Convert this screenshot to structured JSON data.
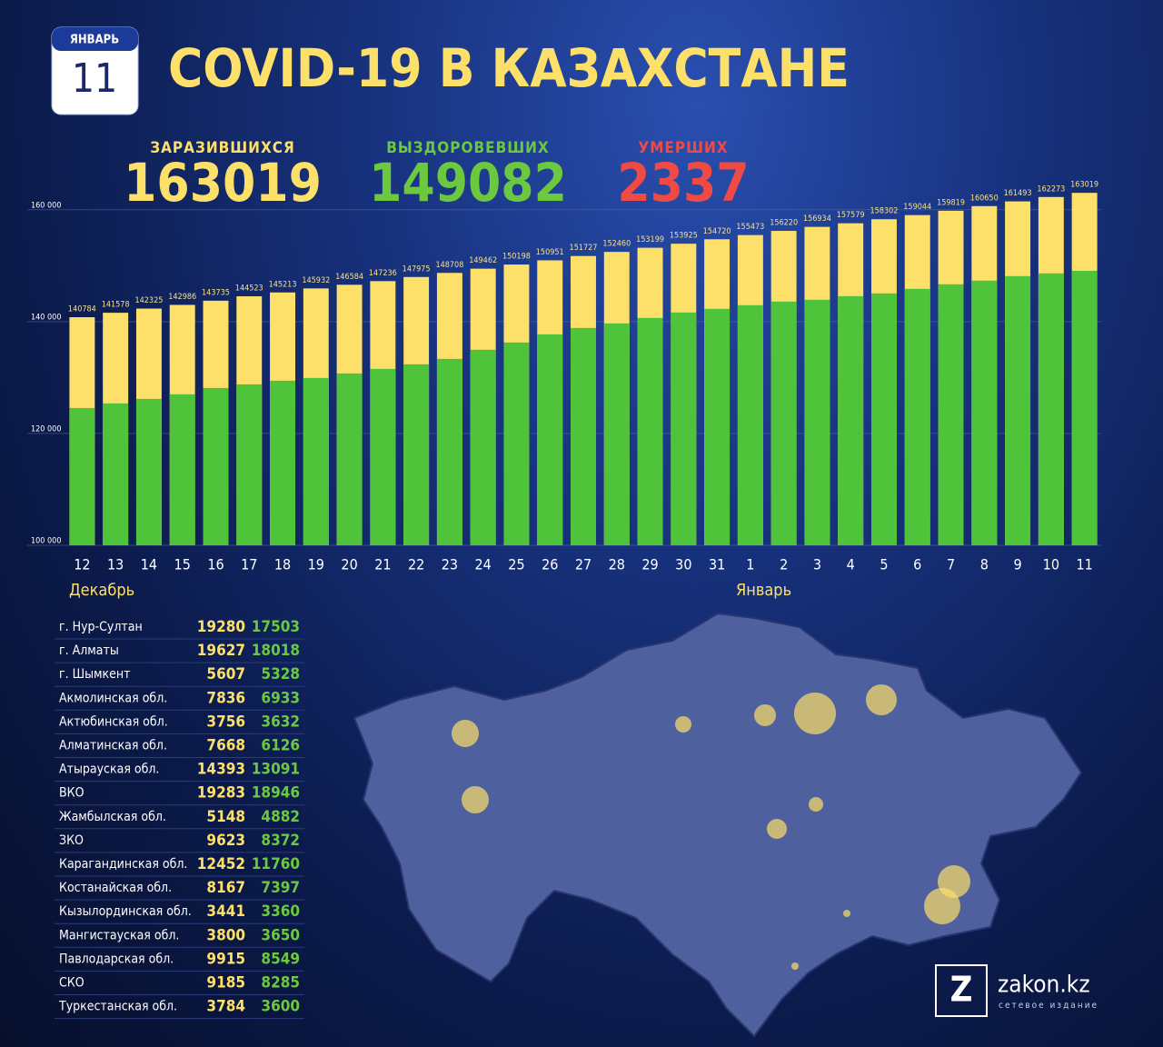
{
  "header": {
    "month": "ЯНВАРЬ",
    "day": "11",
    "title": "COVID-19 В КАЗАХСТАНЕ"
  },
  "stats": [
    {
      "label": "ЗАРАЗИВШИХСЯ",
      "value": 163019,
      "color": "#fde06a"
    },
    {
      "label": "ВЫЗДОРОВЕВШИХ",
      "value": 149082,
      "color": "#6cc93f"
    },
    {
      "label": "УМЕРШИХ",
      "value": 2337,
      "color": "#f04a45"
    }
  ],
  "chart_data": {
    "type": "bar",
    "categories": [
      "12",
      "13",
      "14",
      "15",
      "16",
      "17",
      "18",
      "19",
      "20",
      "21",
      "22",
      "23",
      "24",
      "25",
      "26",
      "27",
      "28",
      "29",
      "30",
      "31",
      "1",
      "2",
      "3",
      "4",
      "5",
      "6",
      "7",
      "8",
      "9",
      "10",
      "11"
    ],
    "series": [
      {
        "color": "#fde06a",
        "values": [
          140784,
          141578,
          142325,
          142986,
          143735,
          144523,
          145213,
          145932,
          146584,
          147236,
          147975,
          148708,
          149462,
          150198,
          150951,
          151727,
          152460,
          153199,
          153925,
          154720,
          155473,
          156220,
          156934,
          157579,
          158302,
          159044,
          159819,
          160650,
          161493,
          162273,
          163019
        ]
      },
      {
        "color": "#4fc43a",
        "values": [
          124550,
          125370,
          126180,
          127000,
          128130,
          128780,
          129430,
          129920,
          130730,
          131540,
          132360,
          133330,
          134960,
          136260,
          137720,
          138860,
          139670,
          140650,
          141630,
          142280,
          142930,
          143580,
          143900,
          144550,
          145040,
          145850,
          146670,
          147320,
          148130,
          148620,
          149082
        ]
      }
    ],
    "ylim": [
      100000,
      165000
    ],
    "yticks": [
      {
        "value": 100000,
        "label": "100 000"
      },
      {
        "value": 120000,
        "label": "120 000"
      },
      {
        "value": 140000,
        "label": "140 000"
      },
      {
        "value": 160000,
        "label": "160 000"
      }
    ],
    "grid": true,
    "annotations": [
      "Декабрь",
      "Январь"
    ]
  },
  "table": {
    "rows": [
      [
        "г. Нур-Султан",
        "19280",
        "17503"
      ],
      [
        "г. Алматы",
        "19627",
        "18018"
      ],
      [
        "г. Шымкент",
        "5607",
        "5328"
      ],
      [
        "Акмолинская обл.",
        "7836",
        "6933"
      ],
      [
        "Актюбинская обл.",
        "3756",
        "3632"
      ],
      [
        "Алматинская обл.",
        "7668",
        "6126"
      ],
      [
        "Атырауская обл.",
        "14393",
        "13091"
      ],
      [
        "ВКО",
        "19283",
        "18946"
      ],
      [
        "Жамбылская обл.",
        "5148",
        "4882"
      ],
      [
        "ЗКО",
        "9623",
        "8372"
      ],
      [
        "Карагандинская обл.",
        "12452",
        "11760"
      ],
      [
        "Костанайская обл.",
        "8167",
        "7397"
      ],
      [
        "Кызылординская обл.",
        "3441",
        "3360"
      ],
      [
        "Мангистауская обл.",
        "3800",
        "3650"
      ],
      [
        "Павлодарская обл.",
        "9915",
        "8549"
      ],
      [
        "СКО",
        "9185",
        "8285"
      ],
      [
        "Туркестанская обл.",
        "3784",
        "3600"
      ]
    ]
  },
  "logo": {
    "mark": "Z",
    "name": "zakon.kz",
    "tagline": "сетевое издание"
  }
}
